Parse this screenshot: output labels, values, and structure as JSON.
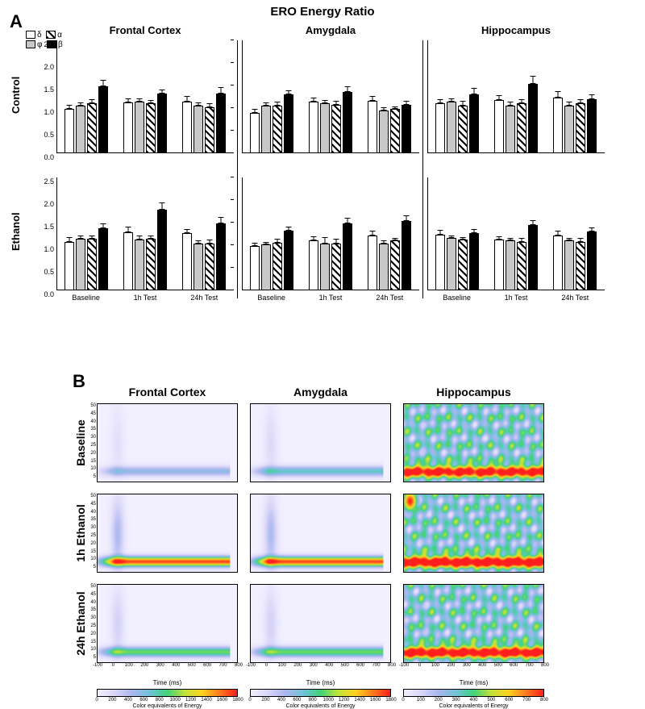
{
  "title": "ERO Energy Ratio",
  "panelA_letter": "A",
  "panelB_letter": "B",
  "regions": [
    "Frontal Cortex",
    "Amygdala",
    "Hippocampus"
  ],
  "rowsA": [
    "Control",
    "Ethanol"
  ],
  "xcats": [
    "Baseline",
    "1h Test",
    "24h Test"
  ],
  "legend": {
    "delta": "δ",
    "phi": "φ",
    "alpha": "α",
    "beta": "β"
  },
  "bands": [
    "delta",
    "phi",
    "alpha",
    "beta"
  ],
  "ylim": [
    0,
    2.5
  ],
  "yticks": [
    0.0,
    0.5,
    1.0,
    1.5,
    2.0,
    2.5
  ],
  "barColors": {
    "delta": "#ffffff",
    "phi": "#c8c8c8",
    "alpha_hatch": "#000000",
    "beta": "#000000"
  },
  "A": {
    "Control": {
      "Frontal Cortex": {
        "Baseline": {
          "delta": [
            0.98,
            0.1
          ],
          "phi": [
            1.05,
            0.08
          ],
          "alpha": [
            1.1,
            0.1
          ],
          "beta": [
            1.48,
            0.15
          ]
        },
        "1h Test": {
          "delta": [
            1.12,
            0.1
          ],
          "phi": [
            1.14,
            0.08
          ],
          "alpha": [
            1.1,
            0.08
          ],
          "beta": [
            1.32,
            0.1
          ]
        },
        "24h Test": {
          "delta": [
            1.14,
            0.12
          ],
          "phi": [
            1.05,
            0.08
          ],
          "alpha": [
            1.02,
            0.08
          ],
          "beta": [
            1.32,
            0.14
          ]
        }
      },
      "Amygdala": {
        "Baseline": {
          "delta": [
            0.9,
            0.08
          ],
          "phi": [
            1.05,
            0.08
          ],
          "alpha": [
            1.06,
            0.08
          ],
          "beta": [
            1.3,
            0.1
          ]
        },
        "1h Test": {
          "delta": [
            1.14,
            0.1
          ],
          "phi": [
            1.1,
            0.08
          ],
          "alpha": [
            1.08,
            0.08
          ],
          "beta": [
            1.36,
            0.12
          ]
        },
        "24h Test": {
          "delta": [
            1.16,
            0.1
          ],
          "phi": [
            0.95,
            0.06
          ],
          "alpha": [
            0.98,
            0.06
          ],
          "beta": [
            1.08,
            0.08
          ]
        }
      },
      "Hippocampus": {
        "Baseline": {
          "delta": [
            1.1,
            0.1
          ],
          "phi": [
            1.14,
            0.08
          ],
          "alpha": [
            1.06,
            0.1
          ],
          "beta": [
            1.3,
            0.14
          ]
        },
        "1h Test": {
          "delta": [
            1.18,
            0.1
          ],
          "phi": [
            1.06,
            0.08
          ],
          "alpha": [
            1.1,
            0.1
          ],
          "beta": [
            1.54,
            0.18
          ]
        },
        "24h Test": {
          "delta": [
            1.24,
            0.14
          ],
          "phi": [
            1.06,
            0.08
          ],
          "alpha": [
            1.1,
            0.1
          ],
          "beta": [
            1.2,
            0.1
          ]
        }
      }
    },
    "Ethanol": {
      "Frontal Cortex": {
        "Baseline": {
          "delta": [
            1.08,
            0.1
          ],
          "phi": [
            1.14,
            0.08
          ],
          "alpha": [
            1.14,
            0.08
          ],
          "beta": [
            1.38,
            0.1
          ]
        },
        "1h Test": {
          "delta": [
            1.28,
            0.14
          ],
          "phi": [
            1.12,
            0.1
          ],
          "alpha": [
            1.14,
            0.08
          ],
          "beta": [
            1.78,
            0.16
          ]
        },
        "24h Test": {
          "delta": [
            1.26,
            0.1
          ],
          "phi": [
            1.04,
            0.06
          ],
          "alpha": [
            1.04,
            0.08
          ],
          "beta": [
            1.48,
            0.14
          ]
        }
      },
      "Amygdala": {
        "Baseline": {
          "delta": [
            0.98,
            0.08
          ],
          "phi": [
            1.02,
            0.06
          ],
          "alpha": [
            1.06,
            0.08
          ],
          "beta": [
            1.32,
            0.1
          ]
        },
        "1h Test": {
          "delta": [
            1.1,
            0.1
          ],
          "phi": [
            1.04,
            0.14
          ],
          "alpha": [
            1.04,
            0.1
          ],
          "beta": [
            1.48,
            0.12
          ]
        },
        "24h Test": {
          "delta": [
            1.22,
            0.1
          ],
          "phi": [
            1.04,
            0.06
          ],
          "alpha": [
            1.1,
            0.06
          ],
          "beta": [
            1.54,
            0.12
          ]
        }
      },
      "Hippocampus": {
        "Baseline": {
          "delta": [
            1.24,
            0.1
          ],
          "phi": [
            1.16,
            0.06
          ],
          "alpha": [
            1.12,
            0.06
          ],
          "beta": [
            1.26,
            0.1
          ]
        },
        "1h Test": {
          "delta": [
            1.12,
            0.08
          ],
          "phi": [
            1.1,
            0.06
          ],
          "alpha": [
            1.08,
            0.08
          ],
          "beta": [
            1.44,
            0.12
          ]
        },
        "24h Test": {
          "delta": [
            1.22,
            0.1
          ],
          "phi": [
            1.1,
            0.06
          ],
          "alpha": [
            1.08,
            0.08
          ],
          "beta": [
            1.3,
            0.1
          ]
        }
      }
    }
  },
  "B": {
    "rowLabels": [
      "Baseline",
      "1h Ethanol",
      "24h Ethanol"
    ],
    "colTitles": [
      "Frontal Cortex",
      "Amygdala",
      "Hippocampus"
    ],
    "xLabel": "Time (ms)",
    "colorbarLabel": "Color equivalents of Energy",
    "yTicks": [
      5,
      10,
      15,
      20,
      25,
      30,
      35,
      40,
      45,
      50
    ],
    "xTicks": [
      -100,
      0,
      100,
      200,
      300,
      400,
      500,
      600,
      700,
      800
    ],
    "colorStops": [
      "#f2efff",
      "#d8d5f8",
      "#a9b6ef",
      "#6fc3d9",
      "#3fd37a",
      "#c0e23a",
      "#ffd21f",
      "#ff7b1f",
      "#ff1e1e"
    ],
    "cbTicks": [
      0,
      200,
      400,
      600,
      800,
      1000,
      1200,
      1400,
      1600,
      1800
    ],
    "cbTicksHC": [
      0,
      100,
      200,
      300,
      400,
      500,
      600,
      700,
      800
    ],
    "intensity": {
      "Baseline": {
        "Frontal Cortex": 0.3,
        "Amygdala": 0.4,
        "Hippocampus": 0.8
      },
      "1h Ethanol": {
        "Frontal Cortex": 0.95,
        "Amygdala": 0.95,
        "Hippocampus": 0.9
      },
      "24h Ethanol": {
        "Frontal Cortex": 0.55,
        "Amygdala": 0.55,
        "Hippocampus": 0.85
      }
    },
    "hcNoisy": true
  }
}
